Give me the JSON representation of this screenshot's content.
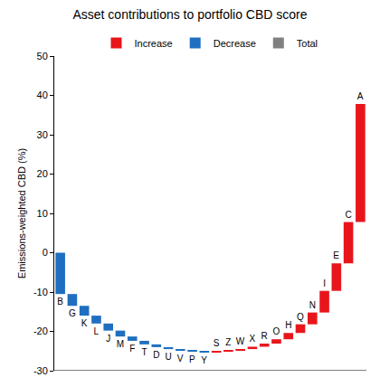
{
  "chart_data": {
    "type": "waterfall",
    "title": "Asset contributions to portfolio CBD score",
    "y_label": "Emissions-weighted CBD (%)",
    "categories": [
      "B",
      "G",
      "K",
      "L",
      "J",
      "M",
      "F",
      "T",
      "D",
      "U",
      "V",
      "P",
      "Y",
      "S",
      "Z",
      "W",
      "X",
      "R",
      "O",
      "H",
      "Q",
      "N",
      "I",
      "E",
      "C",
      "A"
    ],
    "values": [
      -10.5,
      -3,
      -2.5,
      -2,
      -1.8,
      -1.5,
      -1.1,
      -0.9,
      -0.7,
      -0.5,
      -0.4,
      -0.2,
      -0.1,
      0.1,
      0.2,
      0.4,
      0.6,
      0.8,
      1.1,
      1.6,
      2.2,
      3.0,
      5.5,
      7.0,
      10.5,
      30
    ],
    "series": [
      {
        "name": "Increase",
        "color": "#e8161b"
      },
      {
        "name": "Decrease",
        "color": "#1f6fc0"
      },
      {
        "name": "Total",
        "color": "#808080"
      }
    ],
    "ylim": [
      -30,
      50
    ],
    "yticks": [
      -30,
      -20,
      -10,
      0,
      10,
      20,
      30,
      40,
      50
    ],
    "grid": false,
    "legend": "top",
    "tick_labels": "y"
  }
}
